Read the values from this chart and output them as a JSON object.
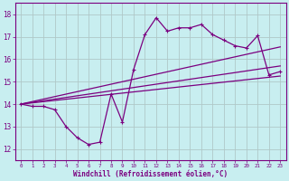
{
  "xlabel": "Windchill (Refroidissement éolien,°C)",
  "bg_color": "#c8eef0",
  "line_color": "#7b0080",
  "grid_color": "#b0c8c8",
  "xlim": [
    -0.5,
    23.5
  ],
  "ylim": [
    11.5,
    18.5
  ],
  "xticks": [
    0,
    1,
    2,
    3,
    4,
    5,
    6,
    7,
    8,
    9,
    10,
    11,
    12,
    13,
    14,
    15,
    16,
    17,
    18,
    19,
    20,
    21,
    22,
    23
  ],
  "yticks": [
    12,
    13,
    14,
    15,
    16,
    17,
    18
  ],
  "main_x": [
    0,
    1,
    2,
    3,
    4,
    5,
    6,
    7,
    8,
    9,
    10,
    11,
    12,
    13,
    14,
    15,
    16,
    17,
    18,
    19,
    20,
    21,
    22,
    23
  ],
  "main_y": [
    14.0,
    13.9,
    13.9,
    13.75,
    13.0,
    12.5,
    12.2,
    12.3,
    14.45,
    13.2,
    15.55,
    17.1,
    17.85,
    17.25,
    17.4,
    17.4,
    17.55,
    17.1,
    16.85,
    16.6,
    16.5,
    17.05,
    15.3,
    15.45
  ],
  "line1_x": [
    0,
    23
  ],
  "line1_y": [
    14.0,
    15.25
  ],
  "line2_x": [
    0,
    23
  ],
  "line2_y": [
    14.0,
    15.7
  ],
  "line3_x": [
    0,
    23
  ],
  "line3_y": [
    14.0,
    16.55
  ]
}
